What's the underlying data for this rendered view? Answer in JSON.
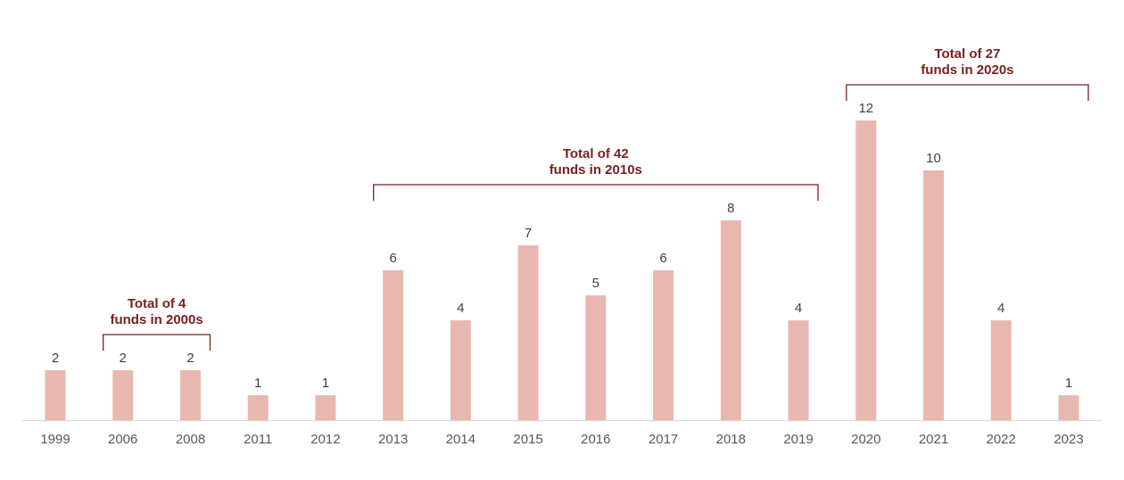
{
  "chart_data": {
    "type": "bar",
    "title": "",
    "xlabel": "",
    "ylabel": "",
    "categories": [
      "1999",
      "2006",
      "2008",
      "2011",
      "2012",
      "2013",
      "2014",
      "2015",
      "2016",
      "2017",
      "2018",
      "2019",
      "2020",
      "2021",
      "2022",
      "2023"
    ],
    "values": [
      2,
      2,
      2,
      1,
      1,
      6,
      4,
      7,
      5,
      6,
      8,
      4,
      12,
      10,
      4,
      1
    ],
    "ylim": [
      0,
      12
    ],
    "grid": false,
    "data_labels": true,
    "bar_color": "#e8b8b0",
    "axis_color": "#d9d9d9",
    "annotation_color": "#7a1f1f",
    "annotations": [
      {
        "lines": [
          "Total of 4",
          "funds in 2000s"
        ],
        "from_category": "2006",
        "to_category": "2008"
      },
      {
        "lines": [
          "Total of 42",
          "funds in 2010s"
        ],
        "from_category": "2013",
        "to_category": "2019"
      },
      {
        "lines": [
          "Total of 27",
          "funds in 2020s"
        ],
        "from_category": "2020",
        "to_category": "2023"
      }
    ]
  }
}
